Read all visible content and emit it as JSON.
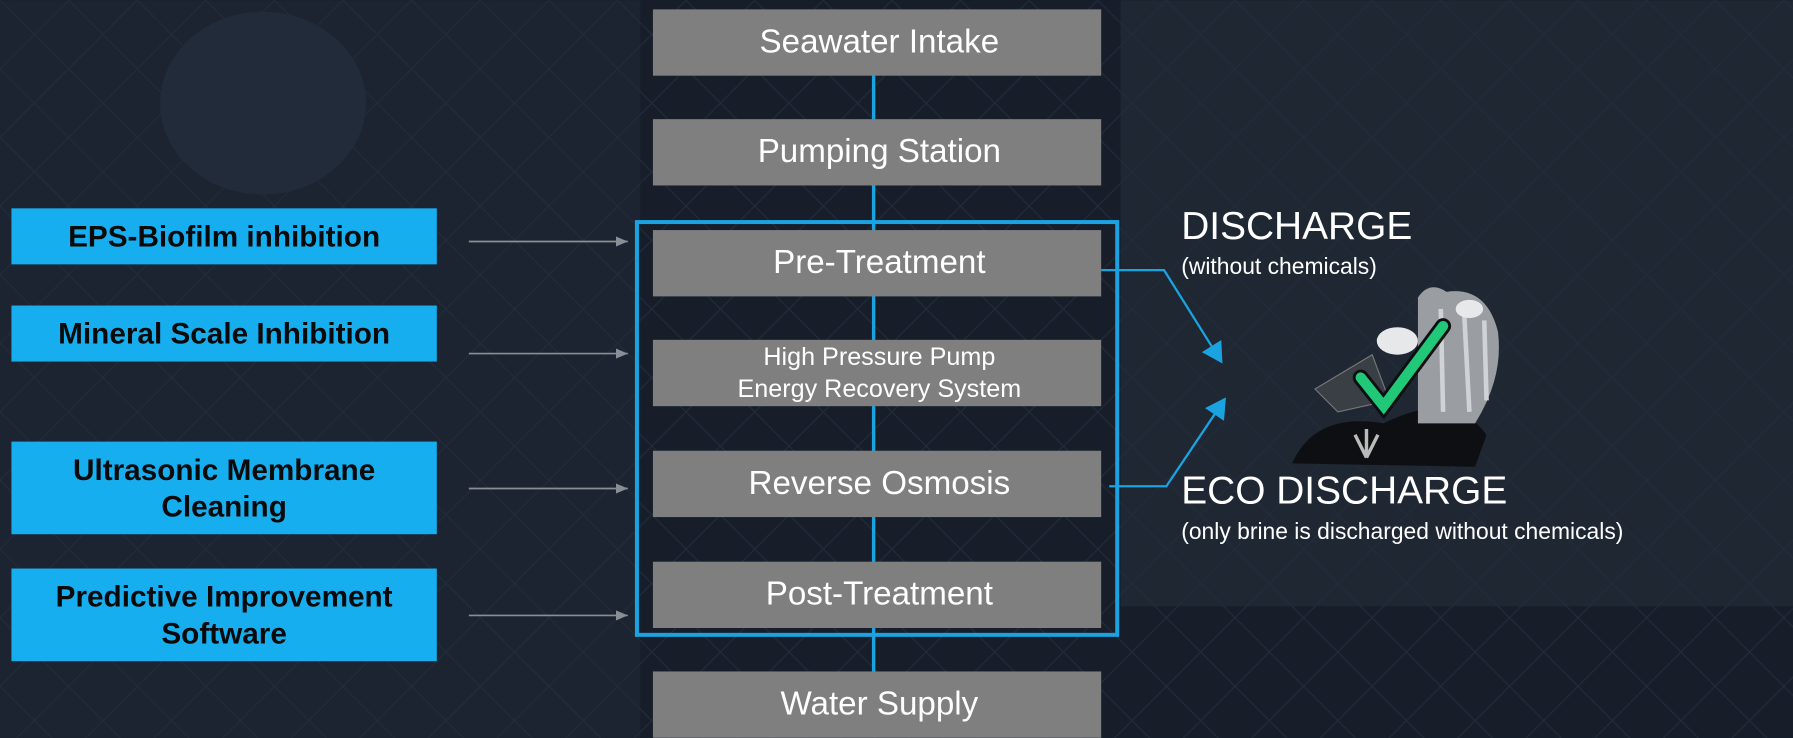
{
  "process": [
    {
      "lines": [
        "Seawater Intake"
      ]
    },
    {
      "lines": [
        "Pumping Station"
      ]
    },
    {
      "lines": [
        "Pre-Treatment"
      ]
    },
    {
      "lines": [
        "High Pressure Pump",
        "Energy Recovery System"
      ]
    },
    {
      "lines": [
        "Reverse Osmosis"
      ]
    },
    {
      "lines": [
        "Post-Treatment"
      ]
    },
    {
      "lines": [
        "Water Supply"
      ]
    }
  ],
  "technologies": [
    {
      "lines": [
        "EPS-Biofilm inhibition"
      ]
    },
    {
      "lines": [
        "Mineral Scale Inhibition"
      ]
    },
    {
      "lines": [
        "Ultrasonic Membrane",
        "Cleaning"
      ]
    },
    {
      "lines": [
        "Predictive Improvement",
        "Software"
      ]
    }
  ],
  "discharge": {
    "title": "DISCHARGE",
    "subtitle": "(without chemicals)"
  },
  "eco_discharge": {
    "title": "ECO DISCHARGE",
    "subtitle": "(only brine is discharged without chemicals)"
  }
}
